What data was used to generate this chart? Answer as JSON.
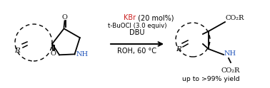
{
  "bg_color": "#ffffff",
  "nh_color": "#2255bb",
  "kbr_color": "#cc2222",
  "text_color": "#000000",
  "kbr_text": "KBr",
  "kbr_rest": " (20 mol%)",
  "line2": "t-BuOCl (3.0 equiv)",
  "line3": "DBU",
  "line4": "ROH, 60 °C",
  "yield_text": "up to >99% yield",
  "font_size": 7.0
}
